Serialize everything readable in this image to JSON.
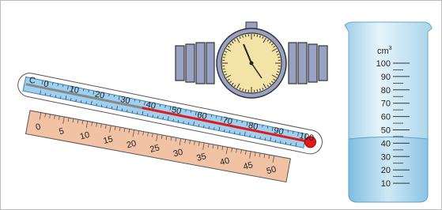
{
  "thermometer": {
    "unit": "C",
    "labels": [
      0,
      10,
      20,
      30,
      40,
      50,
      60,
      70,
      80,
      90,
      100
    ]
  },
  "ruler": {
    "labels": [
      0,
      5,
      10,
      15,
      20,
      25,
      30,
      35,
      40,
      45,
      50
    ]
  },
  "cylinder": {
    "unit": "cm",
    "unit_power": "3",
    "labels": [
      100,
      90,
      80,
      70,
      60,
      50,
      40,
      30,
      20,
      10
    ]
  }
}
